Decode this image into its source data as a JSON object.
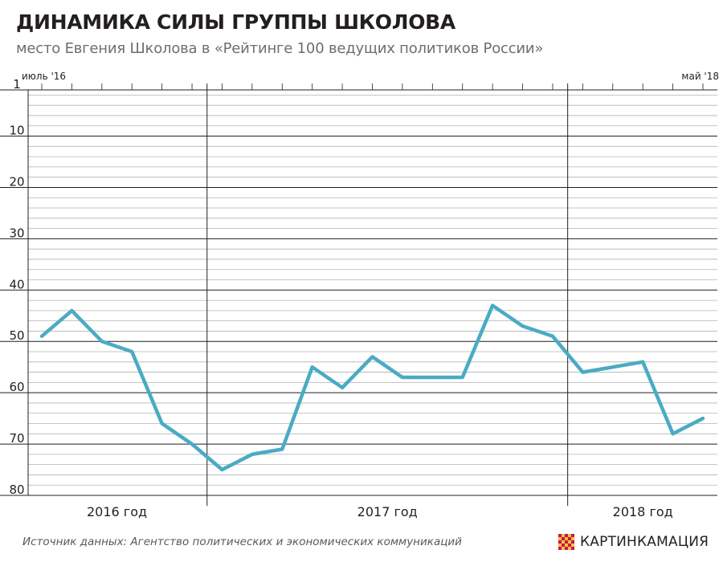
{
  "brand": {
    "name": "КАРТИНКАМАЦИЯ",
    "logo_icon": "checkered-logo-icon",
    "logo_colors": [
      "#c2185b",
      "#fbc02d"
    ]
  },
  "source": "Источник данных: Агентство политических и экономических коммуникаций",
  "chart_data": {
    "type": "line",
    "title": "ДИНАМИКА СИЛЫ ГРУППЫ ШКОЛОВА",
    "subtitle": "место Евгения Школова в «Рейтинге 100 ведущих политиков России»",
    "y_inverted": true,
    "ylim": [
      1,
      80
    ],
    "y_ticks": [
      1,
      10,
      20,
      30,
      40,
      50,
      60,
      70,
      80
    ],
    "grid": "horizontal every 2 ranks",
    "x_start_label": "июль '16",
    "x_end_label": "май '18",
    "x": [
      "2016-07",
      "2016-08",
      "2016-09",
      "2016-10",
      "2016-11",
      "2016-12",
      "2017-01",
      "2017-02",
      "2017-03",
      "2017-04",
      "2017-05",
      "2017-06",
      "2017-07",
      "2017-08",
      "2017-09",
      "2017-10",
      "2017-11",
      "2017-12",
      "2018-01",
      "2018-02",
      "2018-03",
      "2018-04",
      "2018-05"
    ],
    "year_labels": [
      {
        "label": "2016 год",
        "from": "2016-07",
        "to": "2016-12"
      },
      {
        "label": "2017 год",
        "from": "2017-01",
        "to": "2017-12"
      },
      {
        "label": "2018 год",
        "from": "2018-01",
        "to": "2018-05"
      }
    ],
    "series": [
      {
        "color": "#4aabc4",
        "values": [
          49,
          44,
          50,
          52,
          66,
          70,
          75,
          72,
          71,
          55,
          59,
          53,
          57,
          57,
          57,
          43,
          47,
          49,
          56,
          55,
          54,
          68,
          65
        ]
      }
    ]
  }
}
